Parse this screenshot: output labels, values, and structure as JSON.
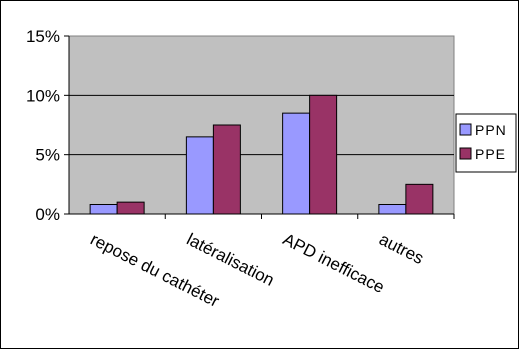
{
  "chart_data": {
    "type": "bar",
    "title": "",
    "xlabel": "",
    "ylabel": "",
    "categories": [
      "repose du cathéter",
      "latéralisation",
      "APD inefficace",
      "autres"
    ],
    "ylim": [
      0,
      15
    ],
    "yticks": [
      "0%",
      "5%",
      "10%",
      "15%"
    ],
    "yticks_values": [
      0,
      5,
      10,
      15
    ],
    "y_unit": "%",
    "grid": true,
    "legend_position": "right",
    "series": [
      {
        "name": "PPN",
        "color": "#9999ff",
        "values": [
          0.8,
          6.5,
          8.5,
          0.8
        ]
      },
      {
        "name": "PPE",
        "color": "#993366",
        "values": [
          1.0,
          7.5,
          10.0,
          2.5
        ]
      }
    ],
    "plot_background": "#c0c0c0"
  }
}
